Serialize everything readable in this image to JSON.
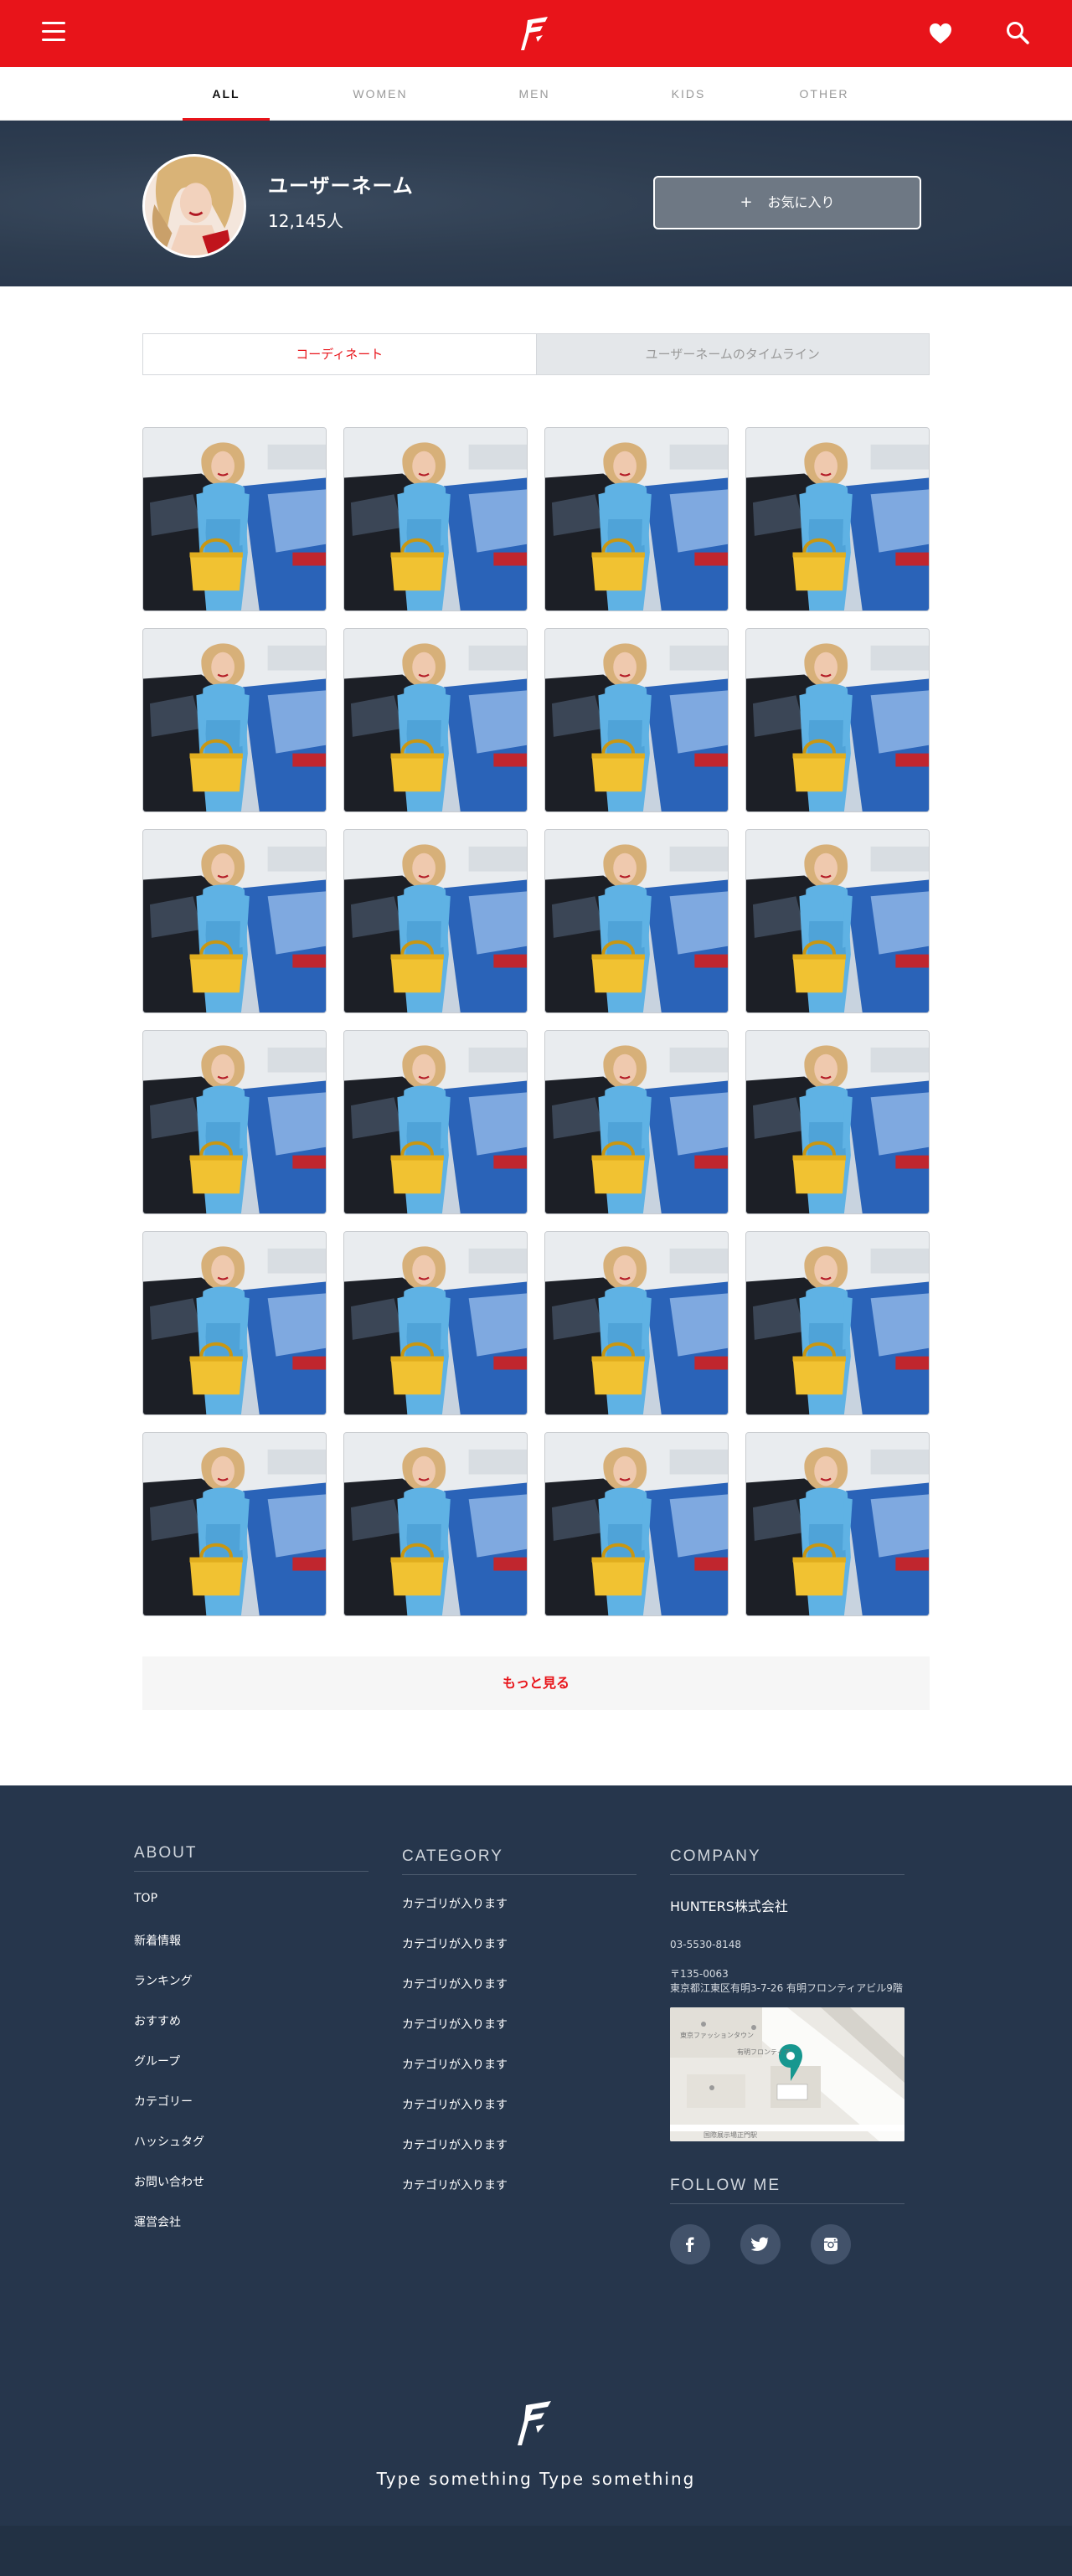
{
  "header": {
    "brand_color": "#e8141a",
    "icons": [
      "menu-icon",
      "logo",
      "heart-icon",
      "search-icon"
    ]
  },
  "categories": [
    "ALL",
    "WOMEN",
    "MEN",
    "KIDS",
    "OTHER"
  ],
  "active_category": "ALL",
  "profile": {
    "username": "ユーザーネーム",
    "followers": "12,145人",
    "favorite_button": "お気に入り",
    "favorite_icon": "plus-icon"
  },
  "content_tabs": [
    "コーディネート",
    "ユーザーネームのタイムライン"
  ],
  "active_content_tab": "コーディネート",
  "grid": {
    "rows": 6,
    "cols": 4
  },
  "more_button": "もっと見る",
  "footer": {
    "about": {
      "heading": "ABOUT",
      "links": [
        "TOP",
        "新着情報",
        "ランキング",
        "おすすめ",
        "グループ",
        "カテゴリー",
        "ハッシュタグ",
        "お問い合わせ",
        "運営会社"
      ]
    },
    "category": {
      "heading": "CATEGORY",
      "links": [
        "カテゴリが入ります",
        "カテゴリが入ります",
        "カテゴリが入ります",
        "カテゴリが入ります",
        "カテゴリが入ります",
        "カテゴリが入ります",
        "カテゴリが入ります",
        "カテゴリが入ります"
      ]
    },
    "company": {
      "heading": "COMPANY",
      "name": "HUNTERS株式会社",
      "tel": "03-5530-8148",
      "postal": "〒135-0063",
      "address": "東京都江東区有明3-7-26 有明フロンティアビル9階",
      "map_labels": [
        "東京ファッションタウン",
        "有明フロンティア",
        "国際展示場正門駅"
      ]
    },
    "follow": {
      "heading": "FOLLOW ME",
      "icons": [
        "facebook-icon",
        "twitter-icon",
        "instagram-icon"
      ]
    },
    "tagline": "Type something Type something",
    "bg_color": "#26364c"
  }
}
